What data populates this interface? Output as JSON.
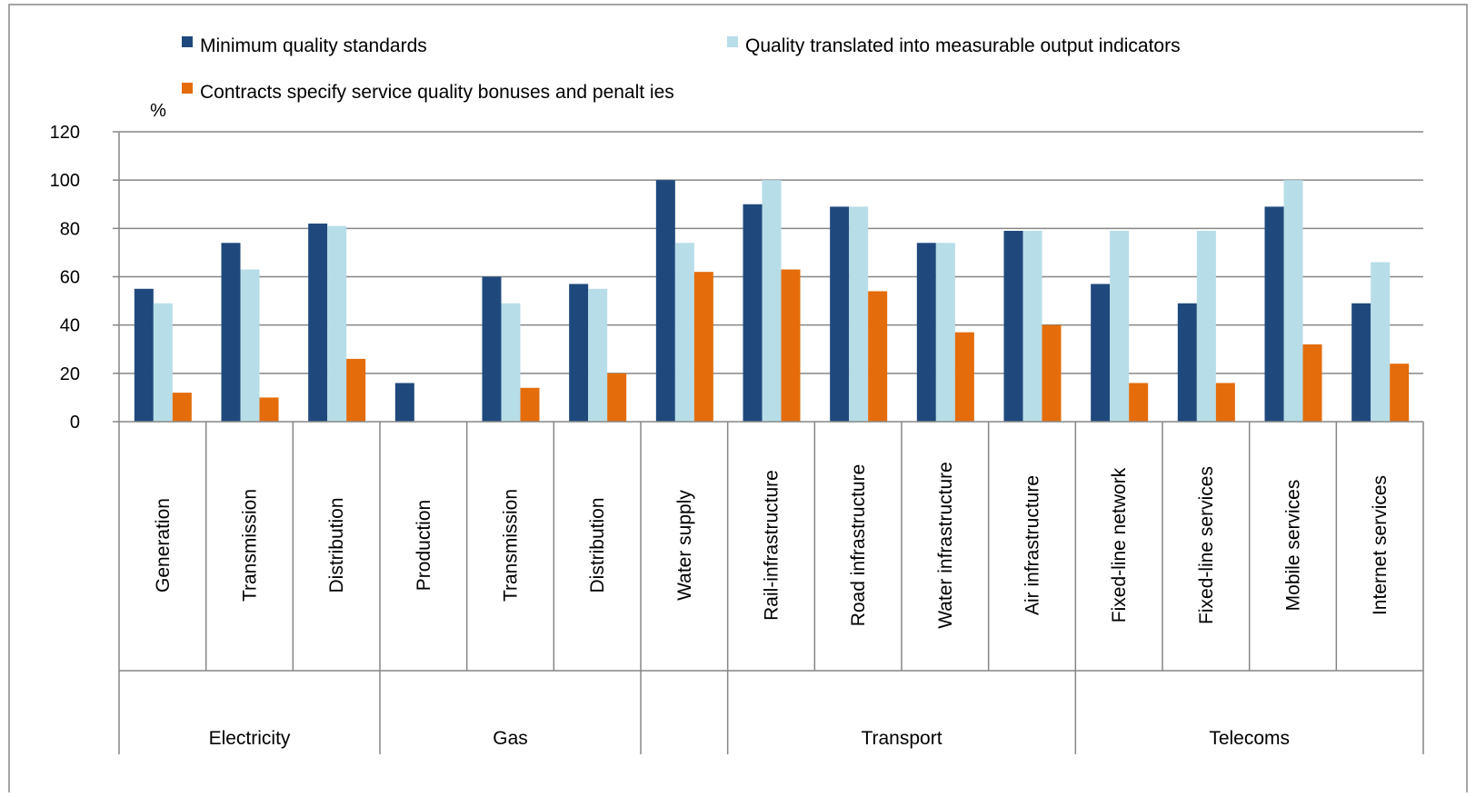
{
  "chart_data": {
    "type": "bar",
    "unit_label": "%",
    "ylim": [
      0,
      120
    ],
    "yticks": [
      0,
      20,
      40,
      60,
      80,
      100,
      120
    ],
    "grid": true,
    "legend_position": "top",
    "groups": [
      {
        "name": "Electricity",
        "categories": [
          "Generation",
          "Transmission",
          "Distribution"
        ]
      },
      {
        "name": "Gas",
        "categories": [
          "Production",
          "Transmission",
          "Distribution"
        ]
      },
      {
        "name": "",
        "categories": [
          "Water supply"
        ]
      },
      {
        "name": "Transport",
        "categories": [
          "Rail-infrastructure",
          "Road infrastructure",
          "Water infrastructure",
          "Air infrastructure"
        ]
      },
      {
        "name": "Telecoms",
        "categories": [
          "Fixed-line network",
          "Fixed-line services",
          "Mobile services",
          "Internet services"
        ]
      }
    ],
    "series": [
      {
        "name": "Minimum quality standards",
        "color": "#1f497d",
        "values": [
          55,
          74,
          82,
          16,
          60,
          57,
          100,
          90,
          89,
          74,
          79,
          57,
          49,
          89,
          49
        ]
      },
      {
        "name": "Quality translated into measurable output indicators",
        "color": "#b7dde8",
        "values": [
          49,
          63,
          81,
          0,
          49,
          55,
          74,
          100,
          89,
          74,
          79,
          79,
          79,
          100,
          66
        ]
      },
      {
        "name": "Contracts specify service quality bonuses and penalt ies",
        "color": "#e46c0a",
        "values": [
          12,
          10,
          26,
          0,
          14,
          20,
          62,
          63,
          54,
          37,
          40,
          16,
          16,
          32,
          24
        ]
      }
    ]
  }
}
